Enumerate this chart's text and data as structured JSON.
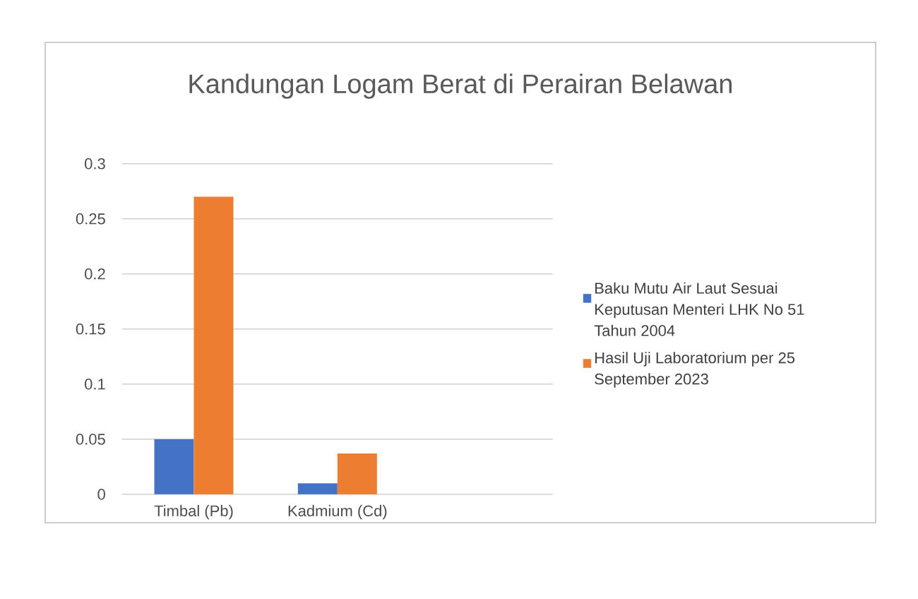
{
  "chart_data": {
    "type": "bar",
    "title": "Kandungan Logam Berat di Perairan Belawan",
    "categories": [
      "Timbal (Pb)",
      "Kadmium (Cd)",
      null
    ],
    "series": [
      {
        "name": "Baku Mutu Air Laut Sesuai Keputusan Menteri LHK No 51 Tahun 2004",
        "color": "#4472c4",
        "values": [
          0.05,
          0.01,
          null
        ]
      },
      {
        "name": "Hasil Uji Laboratorium per 25 September 2023",
        "color": "#ed7d31",
        "values": [
          0.27,
          0.037,
          null
        ]
      }
    ],
    "ylim": [
      0,
      0.3
    ],
    "yticks": [
      0,
      0.05,
      0.1,
      0.15,
      0.2,
      0.25,
      0.3
    ],
    "grid": "y",
    "legend": "right"
  }
}
